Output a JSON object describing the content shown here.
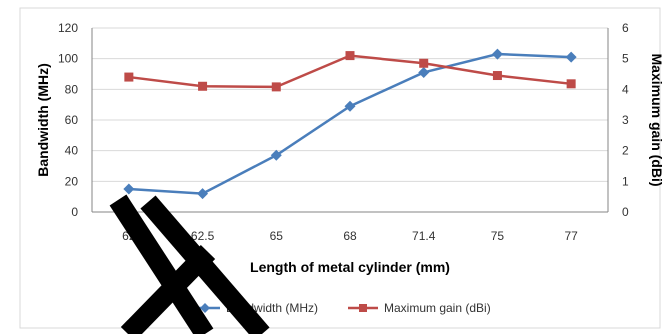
{
  "chart_data": {
    "type": "line",
    "categories": [
      "62",
      "62.5",
      "65",
      "68",
      "71.4",
      "75",
      "77"
    ],
    "xlabel": "Length of metal cylinder (mm)",
    "ylabel_left": "Bandwidth (MHz)",
    "ylabel_right": "Maximum gain (dBi)",
    "ylim_left": [
      0,
      120
    ],
    "yticks_left": [
      "0",
      "20",
      "40",
      "60",
      "80",
      "100",
      "120"
    ],
    "ylim_right": [
      0,
      6
    ],
    "yticks_right": [
      "0",
      "1",
      "2",
      "3",
      "4",
      "5",
      "6"
    ],
    "grid": true,
    "legend_position": "bottom",
    "series": [
      {
        "name": "Bandwidth (MHz)",
        "axis": "left",
        "color": "#4a7ebb",
        "marker": "diamond",
        "values": [
          15,
          12,
          37,
          69,
          91,
          103,
          101
        ]
      },
      {
        "name": "Maximum gain (dBi)",
        "axis": "right",
        "color": "#be4b48",
        "marker": "square",
        "values": [
          4.4,
          4.1,
          4.08,
          5.1,
          4.85,
          4.45,
          4.18
        ]
      }
    ]
  }
}
